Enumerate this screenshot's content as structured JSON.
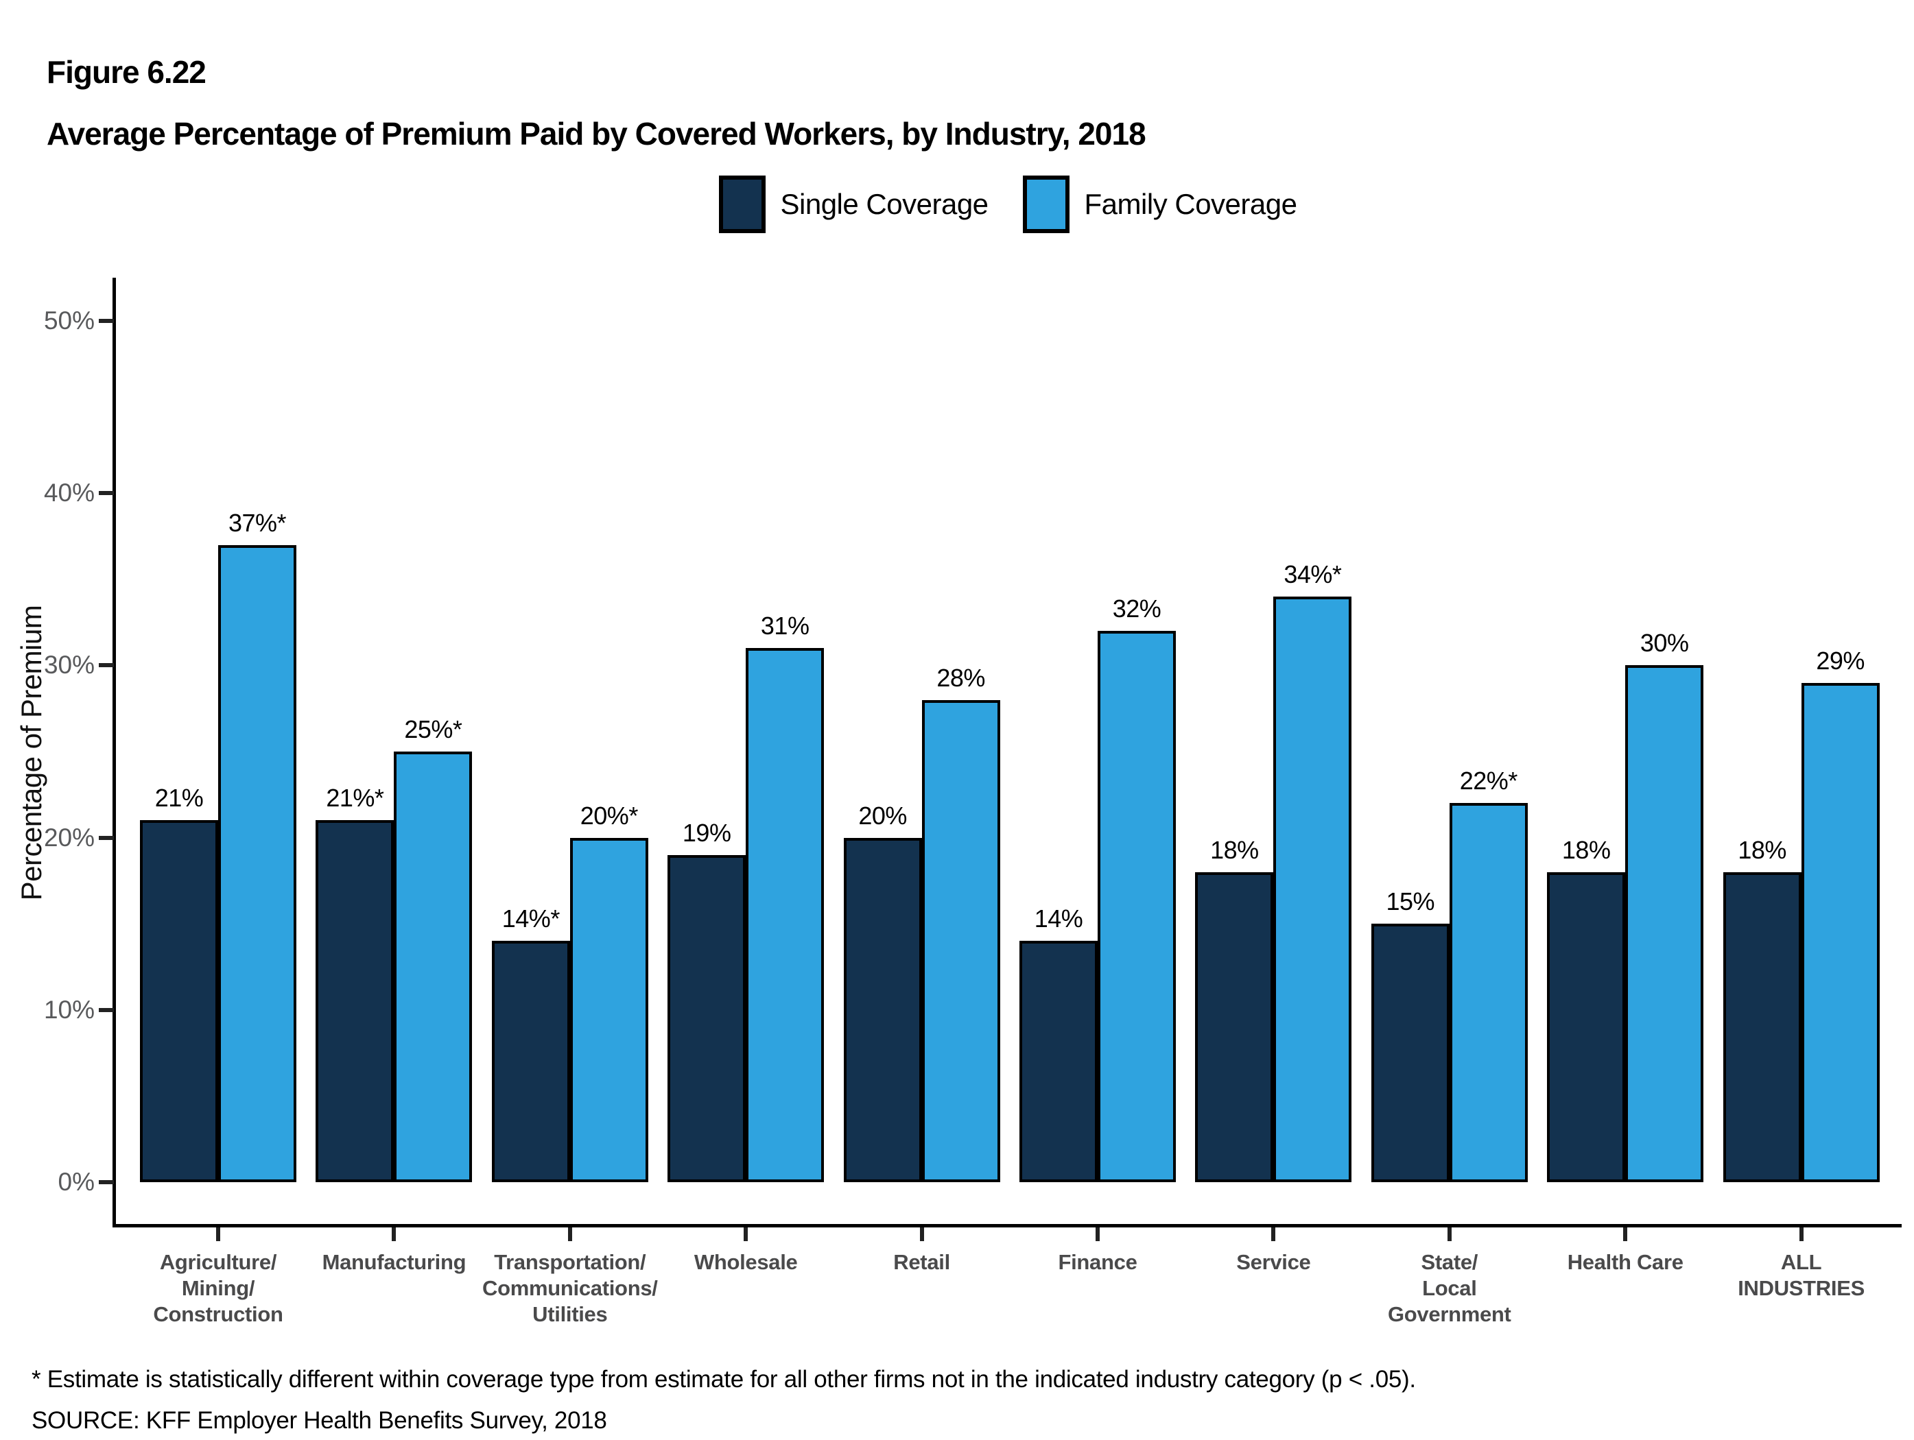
{
  "figure_label": "Figure 6.22",
  "title": "Average Percentage of Premium Paid by Covered Workers, by Industry, 2018",
  "legend": [
    {
      "label": "Single Coverage",
      "color": "#13324F"
    },
    {
      "label": "Family Coverage",
      "color": "#2FA3DF"
    }
  ],
  "footnote": "* Estimate is statistically different within coverage type from estimate for all other firms not in the indicated industry category (p < .05).",
  "source": "SOURCE: KFF Employer Health Benefits Survey, 2018",
  "chart_data": {
    "type": "bar",
    "title": "Average Percentage of Premium Paid by Covered Workers, by Industry, 2018",
    "xlabel": "",
    "ylabel": "Percentage of Premium",
    "ylim": [
      0,
      50
    ],
    "yticks": [
      0,
      10,
      20,
      30,
      40,
      50
    ],
    "ytick_labels": [
      "0%",
      "10%",
      "20%",
      "30%",
      "40%",
      "50%"
    ],
    "grid": false,
    "legend_position": "top-center",
    "bar_outline_color": "#000000",
    "categories": [
      "Agriculture/\nMining/\nConstruction",
      "Manufacturing",
      "Transportation/\nCommunications/\nUtilities",
      "Wholesale",
      "Retail",
      "Finance",
      "Service",
      "State/\nLocal\nGovernment",
      "Health Care",
      "ALL\nINDUSTRIES"
    ],
    "series": [
      {
        "name": "Single Coverage",
        "color": "#13324F",
        "values": [
          21,
          21,
          14,
          19,
          20,
          14,
          18,
          15,
          18,
          18
        ],
        "labels": [
          "21%",
          "21%*",
          "14%*",
          "19%",
          "20%",
          "14%",
          "18%",
          "15%",
          "18%",
          "18%"
        ]
      },
      {
        "name": "Family Coverage",
        "color": "#2FA3DF",
        "values": [
          37,
          25,
          20,
          31,
          28,
          32,
          34,
          22,
          30,
          29
        ],
        "labels": [
          "37%*",
          "25%*",
          "20%*",
          "31%",
          "28%",
          "32%",
          "34%*",
          "22%*",
          "30%",
          "29%"
        ]
      }
    ]
  }
}
